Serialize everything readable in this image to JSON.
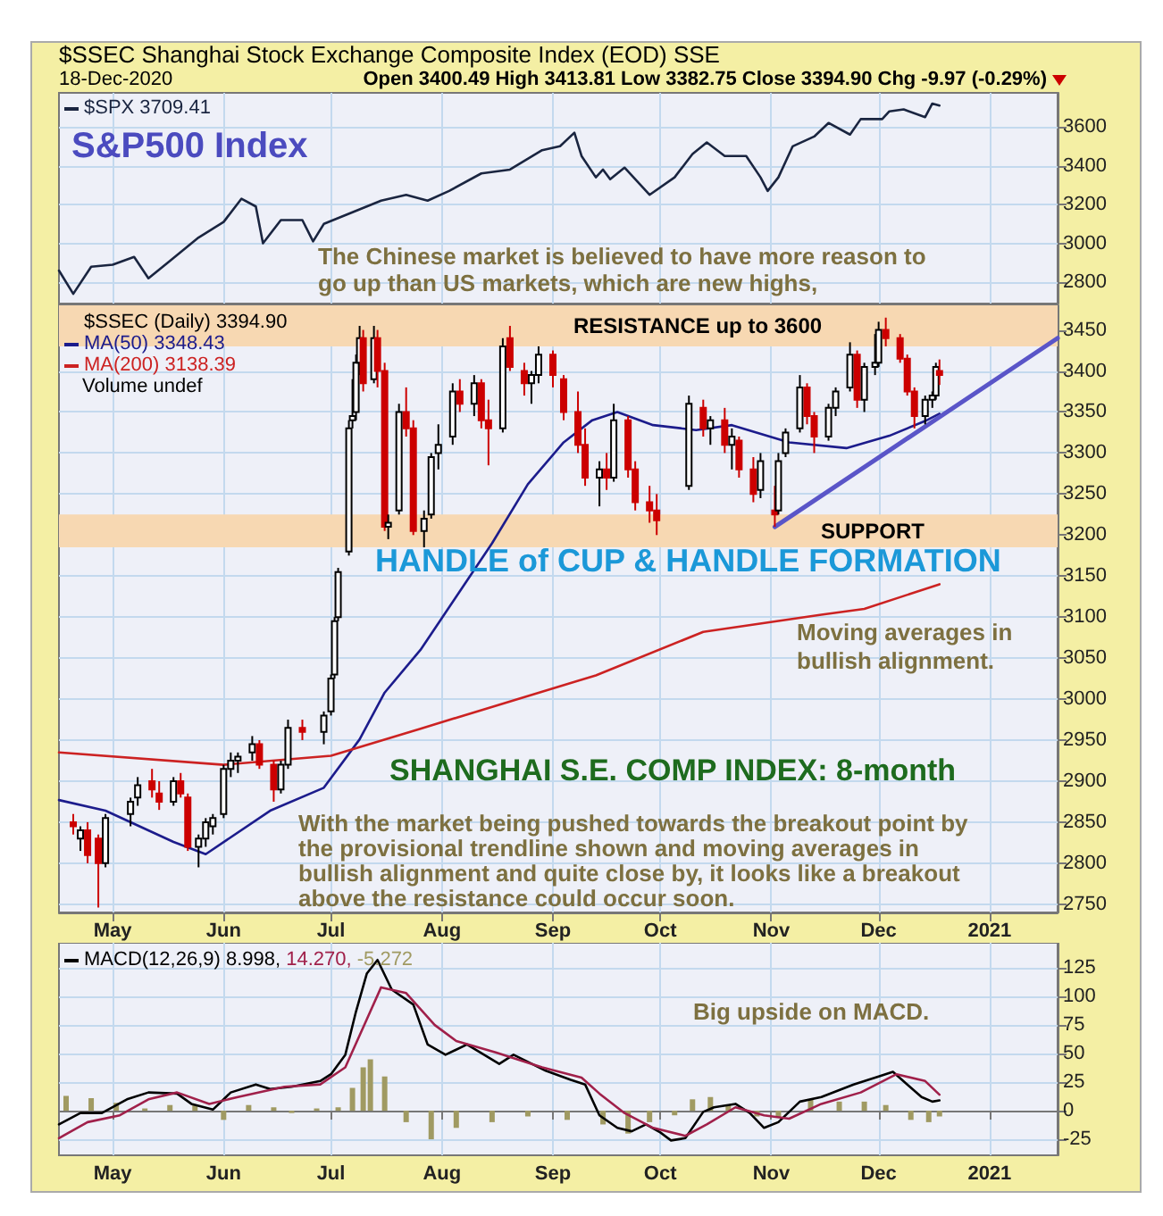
{
  "chart_data": [
    {
      "type": "line",
      "title": "$SSEC Shanghai Stock Exchange Composite Index (EOD) SSE",
      "subtitle": "18-Dec-2020",
      "annotations": [
        "Open 3400.49 High 3413.81 Low 3382.75 Close 3394.90 Chg -9.97 (-0.29%)",
        "S&P500 Index",
        "The Chinese market is believed to have more reason to go up than US markets, which are new highs,"
      ],
      "series": [
        {
          "name": "$SPX 3709.41",
          "color": "#1a2540",
          "x": [
            "2020-04-16",
            "2020-04-20",
            "2020-04-25",
            "2020-05-01",
            "2020-05-07",
            "2020-05-11",
            "2020-05-17",
            "2020-05-25",
            "2020-06-01",
            "2020-06-06",
            "2020-06-10",
            "2020-06-12",
            "2020-06-17",
            "2020-06-23",
            "2020-06-26",
            "2020-06-29",
            "2020-07-07",
            "2020-07-15",
            "2020-07-22",
            "2020-07-28",
            "2020-08-03",
            "2020-08-12",
            "2020-08-20",
            "2020-08-29",
            "2020-09-03",
            "2020-09-07",
            "2020-09-09",
            "2020-09-13",
            "2020-09-15",
            "2020-09-17",
            "2020-09-21",
            "2020-09-28",
            "2020-10-05",
            "2020-10-10",
            "2020-10-14",
            "2020-10-19",
            "2020-10-25",
            "2020-10-29",
            "2020-10-31",
            "2020-11-03",
            "2020-11-07",
            "2020-11-13",
            "2020-11-17",
            "2020-11-23",
            "2020-11-26",
            "2020-12-02",
            "2020-12-04",
            "2020-12-08",
            "2020-12-14",
            "2020-12-16",
            "2020-12-18"
          ],
          "values": [
            2860,
            2740,
            2880,
            2890,
            2930,
            2820,
            2910,
            3030,
            3110,
            3230,
            3190,
            3000,
            3120,
            3120,
            3010,
            3100,
            3160,
            3220,
            3250,
            3220,
            3270,
            3360,
            3380,
            3480,
            3500,
            3570,
            3450,
            3340,
            3380,
            3330,
            3390,
            3250,
            3340,
            3460,
            3520,
            3450,
            3450,
            3340,
            3270,
            3340,
            3500,
            3550,
            3620,
            3560,
            3640,
            3640,
            3680,
            3690,
            3650,
            3720,
            3710
          ]
        }
      ],
      "xlim": [
        "2020-04-16",
        "2021-01-20"
      ],
      "xticks": [
        {
          "value": "2020-05-01",
          "label": "May"
        },
        {
          "value": "2020-06-01",
          "label": "Jun"
        },
        {
          "value": "2020-07-01",
          "label": "Jul"
        },
        {
          "value": "2020-08-01",
          "label": "Aug"
        },
        {
          "value": "2020-09-01",
          "label": "Sep"
        },
        {
          "value": "2020-10-01",
          "label": "Oct"
        },
        {
          "value": "2020-11-01",
          "label": "Nov"
        },
        {
          "value": "2020-12-01",
          "label": "Dec"
        },
        {
          "value": "2021-01-01",
          "label": "2021"
        }
      ],
      "ylim": [
        2690,
        3775
      ],
      "yticks": [
        2800,
        3000,
        3200,
        3400,
        3600
      ],
      "grid": true,
      "legend": "top left",
      "tick_labels": "y"
    },
    {
      "type": "candlestick",
      "annotations": [
        "Volume undef",
        "HANDLE of CUP & HANDLE FORMATION",
        "Moving averages in bullish alignment.",
        "SHANGHAI S.E. COMP INDEX: 8-month",
        "With the market being pushed towards the breakout point by the provisional trendline shown and moving averages in bullish alignment and quite close by, it looks like a breakout above the resistance could occur soon."
      ],
      "series": [
        {
          "name": "$SSEC (Daily) 3394.90",
          "color": "#000000",
          "x": [
            "2020-04-20",
            "2020-04-22",
            "2020-04-24",
            "2020-04-27",
            "2020-04-29",
            "2020-05-06",
            "2020-05-08",
            "2020-05-12",
            "2020-05-14",
            "2020-05-18",
            "2020-05-20",
            "2020-05-22",
            "2020-05-25",
            "2020-05-27",
            "2020-05-29",
            "2020-06-01",
            "2020-06-03",
            "2020-06-05",
            "2020-06-09",
            "2020-06-11",
            "2020-06-15",
            "2020-06-17",
            "2020-06-19",
            "2020-06-23",
            "2020-06-29",
            "2020-07-01",
            "2020-07-02",
            "2020-07-03",
            "2020-07-06",
            "2020-07-07",
            "2020-07-08",
            "2020-07-09",
            "2020-07-10",
            "2020-07-13",
            "2020-07-14",
            "2020-07-16",
            "2020-07-17",
            "2020-07-20",
            "2020-07-22",
            "2020-07-24",
            "2020-07-27",
            "2020-07-29",
            "2020-07-31",
            "2020-08-04",
            "2020-08-06",
            "2020-08-10",
            "2020-08-12",
            "2020-08-14",
            "2020-08-18",
            "2020-08-20",
            "2020-08-24",
            "2020-08-26",
            "2020-08-28",
            "2020-09-01",
            "2020-09-04",
            "2020-09-08",
            "2020-09-10",
            "2020-09-14",
            "2020-09-16",
            "2020-09-18",
            "2020-09-22",
            "2020-09-24",
            "2020-09-28",
            "2020-09-30",
            "2020-10-09",
            "2020-10-13",
            "2020-10-15",
            "2020-10-19",
            "2020-10-21",
            "2020-10-23",
            "2020-10-27",
            "2020-10-29",
            "2020-11-02",
            "2020-11-03",
            "2020-11-05",
            "2020-11-09",
            "2020-11-11",
            "2020-11-13",
            "2020-11-17",
            "2020-11-19",
            "2020-11-23",
            "2020-11-25",
            "2020-11-27",
            "2020-11-30",
            "2020-12-01",
            "2020-12-03",
            "2020-12-07",
            "2020-12-09",
            "2020-12-11",
            "2020-12-14",
            "2020-12-16",
            "2020-12-17",
            "2020-12-18"
          ],
          "ohlc": [
            [
              2850,
              2860,
              2835,
              2845
            ],
            [
              2830,
              2845,
              2815,
              2840
            ],
            [
              2840,
              2850,
              2800,
              2810
            ],
            [
              2830,
              2835,
              2746,
              2800
            ],
            [
              2800,
              2860,
              2795,
              2855
            ],
            [
              2860,
              2880,
              2845,
              2875
            ],
            [
              2880,
              2905,
              2870,
              2895
            ],
            [
              2900,
              2915,
              2880,
              2890
            ],
            [
              2885,
              2900,
              2865,
              2875
            ],
            [
              2875,
              2905,
              2870,
              2900
            ],
            [
              2900,
              2910,
              2880,
              2885
            ],
            [
              2880,
              2885,
              2815,
              2820
            ],
            [
              2820,
              2835,
              2795,
              2830
            ],
            [
              2830,
              2855,
              2820,
              2850
            ],
            [
              2845,
              2860,
              2835,
              2855
            ],
            [
              2860,
              2920,
              2855,
              2915
            ],
            [
              2915,
              2935,
              2905,
              2925
            ],
            [
              2925,
              2935,
              2910,
              2930
            ],
            [
              2935,
              2955,
              2925,
              2945
            ],
            [
              2945,
              2950,
              2915,
              2920
            ],
            [
              2920,
              2925,
              2875,
              2890
            ],
            [
              2890,
              2925,
              2885,
              2920
            ],
            [
              2920,
              2975,
              2915,
              2965
            ],
            [
              2965,
              2975,
              2950,
              2960
            ],
            [
              2960,
              2985,
              2945,
              2980
            ],
            [
              2985,
              3030,
              2980,
              3025
            ],
            [
              3030,
              3100,
              3025,
              3095
            ],
            [
              3100,
              3160,
              3095,
              3155
            ],
            [
              3180,
              3340,
              3175,
              3330
            ],
            [
              3340,
              3390,
              3330,
              3345
            ],
            [
              3350,
              3420,
              3340,
              3410
            ],
            [
              3410,
              3455,
              3395,
              3440
            ],
            [
              3440,
              3450,
              3375,
              3385
            ],
            [
              3390,
              3455,
              3385,
              3440
            ],
            [
              3440,
              3450,
              3380,
              3400
            ],
            [
              3400,
              3410,
              3205,
              3210
            ],
            [
              3210,
              3225,
              3195,
              3215
            ],
            [
              3230,
              3360,
              3225,
              3350
            ],
            [
              3350,
              3380,
              3320,
              3330
            ],
            [
              3330,
              3340,
              3200,
              3205
            ],
            [
              3205,
              3230,
              3185,
              3220
            ],
            [
              3225,
              3300,
              3220,
              3295
            ],
            [
              3300,
              3335,
              3280,
              3310
            ],
            [
              3320,
              3385,
              3310,
              3375
            ],
            [
              3375,
              3390,
              3350,
              3360
            ],
            [
              3360,
              3395,
              3345,
              3385
            ],
            [
              3385,
              3390,
              3330,
              3340
            ],
            [
              3340,
              3365,
              3285,
              3330
            ],
            [
              3330,
              3440,
              3325,
              3430
            ],
            [
              3440,
              3455,
              3400,
              3405
            ],
            [
              3400,
              3410,
              3370,
              3385
            ],
            [
              3385,
              3400,
              3360,
              3395
            ],
            [
              3395,
              3430,
              3385,
              3420
            ],
            [
              3420,
              3425,
              3380,
              3395
            ],
            [
              3390,
              3395,
              3340,
              3350
            ],
            [
              3350,
              3375,
              3300,
              3310
            ],
            [
              3310,
              3330,
              3260,
              3270
            ],
            [
              3270,
              3290,
              3235,
              3280
            ],
            [
              3280,
              3300,
              3255,
              3270
            ],
            [
              3270,
              3360,
              3265,
              3340
            ],
            [
              3340,
              3345,
              3270,
              3280
            ],
            [
              3280,
              3290,
              3230,
              3240
            ],
            [
              3240,
              3260,
              3215,
              3230
            ],
            [
              3230,
              3250,
              3200,
              3218
            ],
            [
              3260,
              3370,
              3255,
              3360
            ],
            [
              3355,
              3365,
              3320,
              3330
            ],
            [
              3330,
              3345,
              3310,
              3340
            ],
            [
              3340,
              3355,
              3300,
              3310
            ],
            [
              3310,
              3330,
              3280,
              3320
            ],
            [
              3315,
              3320,
              3270,
              3280
            ],
            [
              3280,
              3295,
              3240,
              3250
            ],
            [
              3255,
              3300,
              3245,
              3290
            ],
            [
              3230,
              3260,
              3210,
              3225
            ],
            [
              3230,
              3300,
              3225,
              3290
            ],
            [
              3300,
              3330,
              3295,
              3325
            ],
            [
              3330,
              3395,
              3325,
              3380
            ],
            [
              3380,
              3385,
              3335,
              3345
            ],
            [
              3345,
              3350,
              3300,
              3320
            ],
            [
              3320,
              3360,
              3315,
              3355
            ],
            [
              3355,
              3380,
              3345,
              3375
            ],
            [
              3380,
              3435,
              3375,
              3420
            ],
            [
              3420,
              3425,
              3355,
              3365
            ],
            [
              3365,
              3410,
              3350,
              3405
            ],
            [
              3405,
              3445,
              3395,
              3410
            ],
            [
              3410,
              3460,
              3405,
              3450
            ],
            [
              3450,
              3465,
              3430,
              3440
            ],
            [
              3440,
              3445,
              3410,
              3415
            ],
            [
              3415,
              3420,
              3370,
              3375
            ],
            [
              3375,
              3380,
              3330,
              3345
            ],
            [
              3345,
              3370,
              3335,
              3365
            ],
            [
              3365,
              3375,
              3355,
              3370
            ],
            [
              3370,
              3410,
              3365,
              3405
            ],
            [
              3400,
              3414,
              3383,
              3395
            ]
          ],
          "colors": [
            "#cc0000",
            "#000000",
            "#cc0000",
            "#cc0000",
            "#000000",
            "#000000",
            "#000000",
            "#cc0000",
            "#cc0000",
            "#000000",
            "#cc0000",
            "#cc0000",
            "#000000",
            "#000000",
            "#000000",
            "#000000",
            "#000000",
            "#000000",
            "#000000",
            "#cc0000",
            "#cc0000",
            "#000000",
            "#000000",
            "#cc0000",
            "#000000",
            "#000000",
            "#000000",
            "#000000",
            "#000000",
            "#000000",
            "#000000",
            "#000000",
            "#cc0000",
            "#000000",
            "#cc0000",
            "#cc0000",
            "#000000",
            "#000000",
            "#cc0000",
            "#cc0000",
            "#000000",
            "#000000",
            "#000000",
            "#000000",
            "#cc0000",
            "#000000",
            "#cc0000",
            "#cc0000",
            "#000000",
            "#cc0000",
            "#cc0000",
            "#000000",
            "#000000",
            "#cc0000",
            "#cc0000",
            "#cc0000",
            "#cc0000",
            "#000000",
            "#cc0000",
            "#000000",
            "#cc0000",
            "#cc0000",
            "#cc0000",
            "#cc0000",
            "#000000",
            "#cc0000",
            "#000000",
            "#cc0000",
            "#000000",
            "#cc0000",
            "#cc0000",
            "#000000",
            "#cc0000",
            "#000000",
            "#000000",
            "#000000",
            "#cc0000",
            "#cc0000",
            "#000000",
            "#000000",
            "#000000",
            "#cc0000",
            "#000000",
            "#000000",
            "#000000",
            "#cc0000",
            "#cc0000",
            "#cc0000",
            "#cc0000",
            "#000000",
            "#000000",
            "#000000",
            "#cc0000"
          ]
        },
        {
          "type": "line",
          "name": "MA(50) 3348.43",
          "color": "#1c1c8c",
          "x": [
            "2020-04-16",
            "2020-04-29",
            "2020-05-18",
            "2020-05-27",
            "2020-06-14",
            "2020-06-29",
            "2020-07-09",
            "2020-07-16",
            "2020-07-26",
            "2020-08-05",
            "2020-08-15",
            "2020-08-25",
            "2020-09-04",
            "2020-09-12",
            "2020-09-19",
            "2020-09-29",
            "2020-10-11",
            "2020-10-21",
            "2020-11-06",
            "2020-11-22",
            "2020-12-04",
            "2020-12-14",
            "2020-12-18"
          ],
          "values": [
            2877,
            2864,
            2826,
            2811,
            2864,
            2892,
            2951,
            3008,
            3060,
            3125,
            3190,
            3262,
            3313,
            3340,
            3350,
            3334,
            3328,
            3334,
            3313,
            3306,
            3321,
            3339,
            3348
          ]
        },
        {
          "type": "line",
          "name": "MA(200) 3138.39",
          "color": "#cc2222",
          "x": [
            "2020-04-16",
            "2020-06-01",
            "2020-07-01",
            "2020-07-26",
            "2020-09-13",
            "2020-10-13",
            "2020-11-15",
            "2020-11-27",
            "2020-12-18"
          ],
          "values": [
            2935,
            2920,
            2931,
            2964,
            3029,
            3082,
            3103,
            3110,
            3140
          ]
        },
        {
          "type": "line",
          "color": "#5a55c8",
          "x": [
            "2020-11-02",
            "2021-01-20"
          ],
          "values": [
            3210,
            3440
          ]
        }
      ],
      "bands": [
        {
          "axis": "y",
          "from": 3430,
          "to": 3480,
          "label": "RESISTANCE up to 3600",
          "color": "#f7d8b2"
        },
        {
          "axis": "y",
          "from": 3185,
          "to": 3225,
          "label": "SUPPORT",
          "color": "#f7d8b2"
        }
      ],
      "xlim": [
        "2020-04-16",
        "2021-01-20"
      ],
      "xticks": [
        {
          "value": "2020-05-01",
          "label": "May"
        },
        {
          "value": "2020-06-01",
          "label": "Jun"
        },
        {
          "value": "2020-07-01",
          "label": "Jul"
        },
        {
          "value": "2020-08-01",
          "label": "Aug"
        },
        {
          "value": "2020-09-01",
          "label": "Sep"
        },
        {
          "value": "2020-10-01",
          "label": "Oct"
        },
        {
          "value": "2020-11-01",
          "label": "Nov"
        },
        {
          "value": "2020-12-01",
          "label": "Dec"
        },
        {
          "value": "2021-01-01",
          "label": "2021"
        }
      ],
      "ylim": [
        2740,
        3480
      ],
      "yticks": [
        2750,
        2800,
        2850,
        2900,
        2950,
        3000,
        3050,
        3100,
        3150,
        3200,
        3250,
        3300,
        3350,
        3400,
        3450
      ],
      "grid": true,
      "legend": "top left"
    },
    {
      "type": "line",
      "annotations": [
        "Big upside on MACD."
      ],
      "series": [
        {
          "type": "line",
          "name": "MACD(12,26,9) 8.998,",
          "color": "#000000",
          "x": [
            "2020-04-16",
            "2020-04-22",
            "2020-04-28",
            "2020-05-05",
            "2020-05-11",
            "2020-05-19",
            "2020-05-23",
            "2020-05-29",
            "2020-06-03",
            "2020-06-10",
            "2020-06-14",
            "2020-06-20",
            "2020-06-28",
            "2020-07-01",
            "2020-07-05",
            "2020-07-08",
            "2020-07-11",
            "2020-07-14",
            "2020-07-18",
            "2020-07-24",
            "2020-07-28",
            "2020-08-02",
            "2020-08-08",
            "2020-08-17",
            "2020-08-21",
            "2020-08-30",
            "2020-09-06",
            "2020-09-10",
            "2020-09-14",
            "2020-09-19",
            "2020-09-23",
            "2020-09-27",
            "2020-10-01",
            "2020-10-04",
            "2020-10-08",
            "2020-10-13",
            "2020-10-16",
            "2020-10-22",
            "2020-10-26",
            "2020-10-30",
            "2020-11-03",
            "2020-11-09",
            "2020-11-15",
            "2020-11-24",
            "2020-12-01",
            "2020-12-05",
            "2020-12-09",
            "2020-12-13",
            "2020-12-16",
            "2020-12-18"
          ],
          "values": [
            -12,
            -2,
            -2,
            10,
            16,
            15,
            6,
            1,
            16,
            23,
            19,
            21,
            26,
            32,
            49,
            87,
            120,
            132,
            106,
            93,
            58,
            49,
            58,
            41,
            49,
            35,
            27,
            23,
            -4,
            -15,
            -18,
            -12,
            -19,
            -26,
            -24,
            -1,
            3,
            6,
            -2,
            -15,
            -10,
            8,
            12,
            23,
            30,
            34,
            23,
            12,
            8,
            9
          ]
        },
        {
          "name": "14.270,",
          "color": "#a0204a",
          "x": [
            "2020-04-16",
            "2020-04-24",
            "2020-05-03",
            "2020-05-11",
            "2020-05-19",
            "2020-05-28",
            "2020-06-05",
            "2020-06-18",
            "2020-06-28",
            "2020-07-05",
            "2020-07-11",
            "2020-07-15",
            "2020-07-22",
            "2020-07-30",
            "2020-08-05",
            "2020-08-16",
            "2020-08-29",
            "2020-09-09",
            "2020-09-14",
            "2020-09-21",
            "2020-09-29",
            "2020-10-08",
            "2020-10-14",
            "2020-10-22",
            "2020-10-30",
            "2020-11-06",
            "2020-11-15",
            "2020-11-26",
            "2020-12-06",
            "2020-12-14",
            "2020-12-18"
          ],
          "values": [
            -24,
            -10,
            -4,
            10,
            16,
            6,
            12,
            21,
            23,
            38,
            80,
            108,
            103,
            75,
            61,
            51,
            38,
            29,
            15,
            -2,
            -15,
            -22,
            -12,
            3,
            -4,
            -7,
            6,
            16,
            32,
            26,
            14
          ]
        },
        {
          "type": "bar",
          "name": "-5.272",
          "color": "#a09a62",
          "x": [
            "2020-04-18",
            "2020-04-25",
            "2020-05-02",
            "2020-05-10",
            "2020-05-17",
            "2020-05-24",
            "2020-06-01",
            "2020-06-08",
            "2020-06-15",
            "2020-06-20",
            "2020-06-27",
            "2020-07-03",
            "2020-07-07",
            "2020-07-10",
            "2020-07-12",
            "2020-07-16",
            "2020-07-22",
            "2020-07-29",
            "2020-08-05",
            "2020-08-15",
            "2020-08-25",
            "2020-09-05",
            "2020-09-15",
            "2020-09-22",
            "2020-09-28",
            "2020-10-05",
            "2020-10-10",
            "2020-10-15",
            "2020-10-20",
            "2020-10-28",
            "2020-11-03",
            "2020-11-12",
            "2020-11-20",
            "2020-11-27",
            "2020-12-03",
            "2020-12-10",
            "2020-12-15",
            "2020-12-18"
          ],
          "values": [
            13,
            11,
            7,
            2,
            5,
            5,
            -8,
            5,
            3,
            -2,
            2,
            3,
            20,
            38,
            45,
            30,
            -10,
            -25,
            -15,
            -10,
            -5,
            -8,
            -12,
            -20,
            -10,
            -4,
            10,
            12,
            5,
            -5,
            -6,
            10,
            8,
            8,
            5,
            -8,
            -10,
            -5
          ]
        }
      ],
      "xlim": [
        "2020-04-16",
        "2021-01-20"
      ],
      "xticks": [
        {
          "value": "2020-05-01",
          "label": "May"
        },
        {
          "value": "2020-06-01",
          "label": "Jun"
        },
        {
          "value": "2020-07-01",
          "label": "Jul"
        },
        {
          "value": "2020-08-01",
          "label": "Aug"
        },
        {
          "value": "2020-09-01",
          "label": "Sep"
        },
        {
          "value": "2020-10-01",
          "label": "Oct"
        },
        {
          "value": "2020-11-01",
          "label": "Nov"
        },
        {
          "value": "2020-12-01",
          "label": "Dec"
        },
        {
          "value": "2021-01-01",
          "label": "2021"
        }
      ],
      "ylim": [
        -39,
        147
      ],
      "yticks": [
        -25,
        0,
        25,
        50,
        75,
        100,
        125
      ],
      "grid": true,
      "legend": "top left"
    }
  ]
}
